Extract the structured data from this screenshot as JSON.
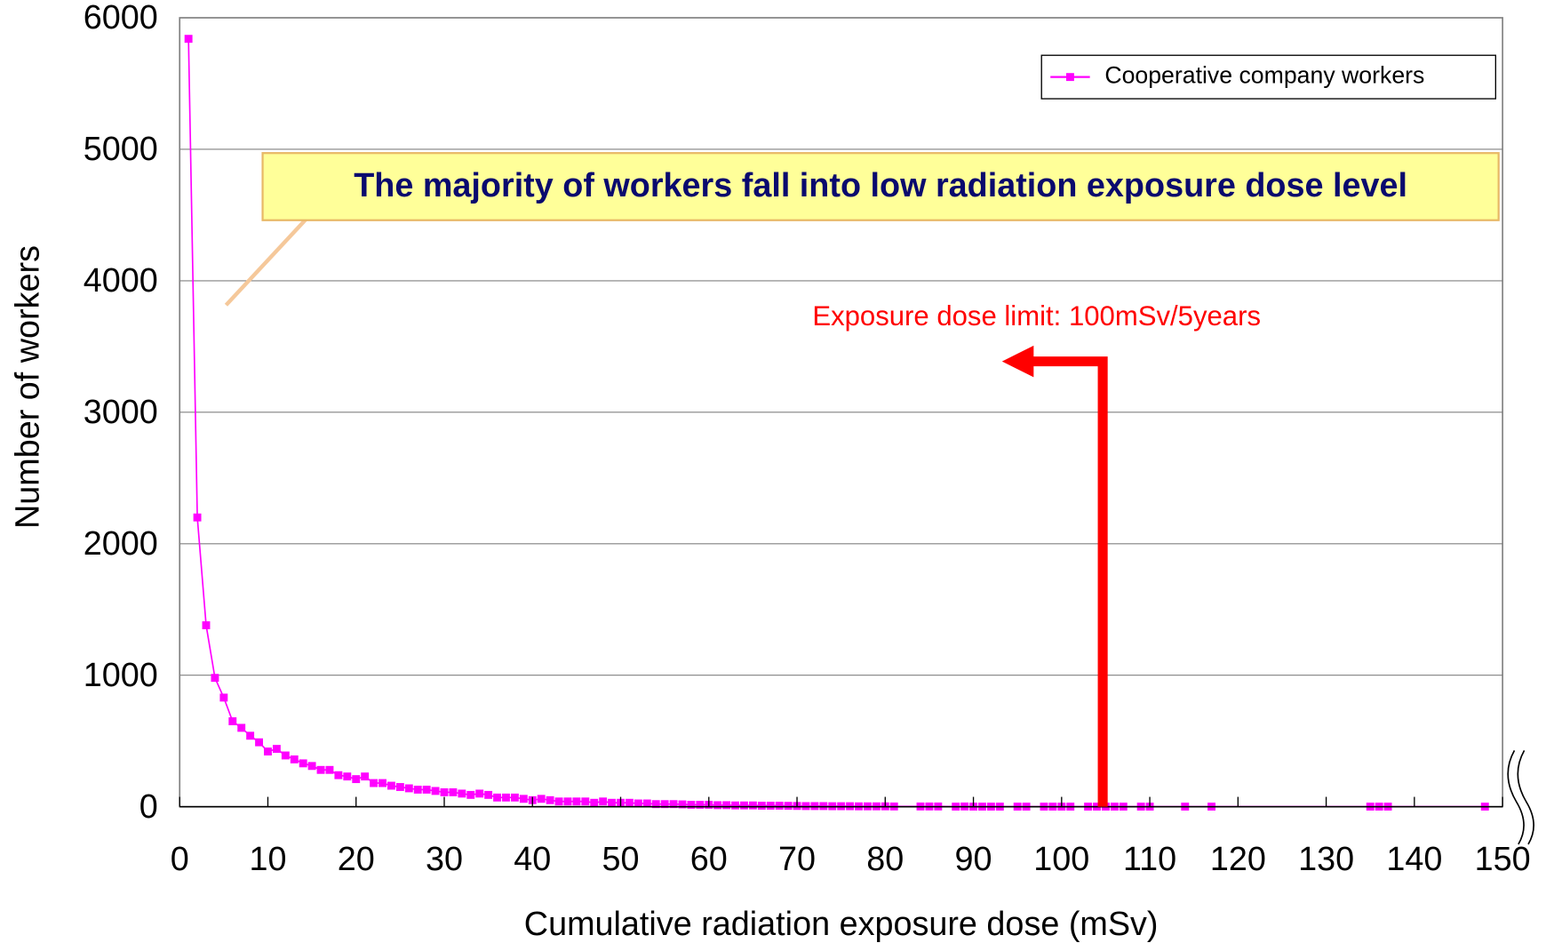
{
  "chart_data": {
    "type": "line",
    "x_label": "Cumulative radiation exposure dose (mSv)",
    "y_label": "Number of workers",
    "callout": "The majority of workers fall into low radiation exposure dose level",
    "limit_annotation": "Exposure dose limit: 100mSv/5years",
    "xlim": [
      0,
      150
    ],
    "xticks": [
      0,
      10,
      20,
      30,
      40,
      50,
      60,
      70,
      80,
      90,
      100,
      110,
      120,
      130,
      140,
      150
    ],
    "ylim": [
      0,
      6000
    ],
    "yticks": [
      0,
      1000,
      2000,
      3000,
      4000,
      5000,
      6000
    ],
    "grid": true,
    "legend": "upper right",
    "x": [
      1,
      2,
      3,
      4,
      5,
      6,
      7,
      8,
      9,
      10,
      11,
      12,
      13,
      14,
      15,
      16,
      17,
      18,
      19,
      20,
      21,
      22,
      23,
      24,
      25,
      26,
      27,
      28,
      29,
      30,
      31,
      32,
      33,
      34,
      35,
      36,
      37,
      38,
      39,
      40,
      41,
      42,
      43,
      44,
      45,
      46,
      47,
      48,
      49,
      50,
      51,
      52,
      53,
      54,
      55,
      56,
      57,
      58,
      59,
      60,
      61,
      62,
      63,
      64,
      65,
      66,
      67,
      68,
      69,
      70,
      71,
      72,
      73,
      74,
      75,
      76,
      77,
      78,
      79,
      80,
      81,
      84,
      85,
      86,
      88,
      89,
      90,
      91,
      92,
      93,
      95,
      96,
      98,
      99,
      100,
      101,
      103,
      104,
      105,
      106,
      107,
      109,
      110,
      114,
      117,
      135,
      136,
      137,
      148
    ],
    "series": [
      {
        "name": "Cooperative company workers",
        "color": "#ff00ff",
        "values": [
          5840,
          2200,
          1380,
          980,
          830,
          650,
          600,
          540,
          490,
          420,
          440,
          390,
          360,
          330,
          310,
          280,
          280,
          240,
          230,
          210,
          230,
          180,
          180,
          160,
          150,
          140,
          130,
          130,
          120,
          110,
          110,
          100,
          90,
          100,
          90,
          70,
          70,
          70,
          60,
          50,
          60,
          50,
          40,
          40,
          40,
          40,
          30,
          40,
          30,
          30,
          30,
          25,
          25,
          20,
          20,
          20,
          18,
          15,
          15,
          15,
          12,
          12,
          10,
          10,
          10,
          8,
          8,
          8,
          7,
          6,
          5,
          5,
          5,
          4,
          4,
          4,
          3,
          3,
          3,
          3,
          2,
          2,
          2,
          2,
          1,
          2,
          1,
          1,
          1,
          1,
          1,
          1,
          1,
          1,
          1,
          1,
          1,
          1,
          1,
          1,
          1,
          1,
          1,
          1,
          1,
          1,
          1,
          1,
          1
        ]
      }
    ]
  }
}
